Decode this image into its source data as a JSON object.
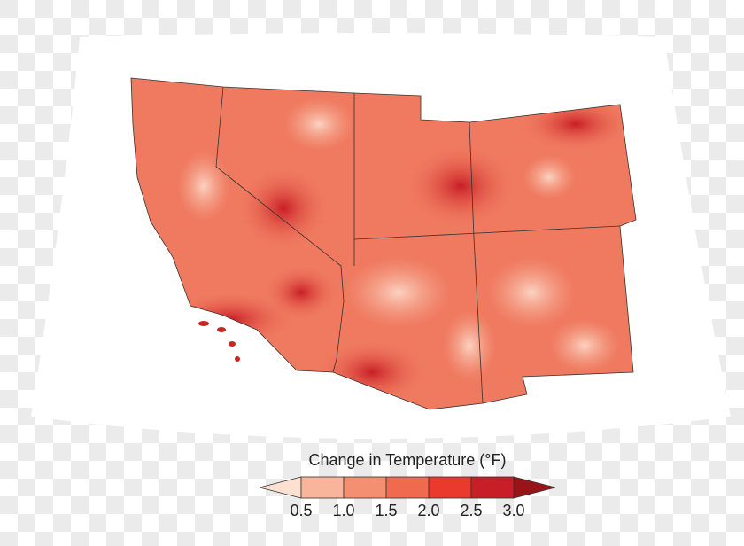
{
  "legend": {
    "title": "Change in Temperature (°F)",
    "ticks": [
      "0.5",
      "1.0",
      "1.5",
      "2.0",
      "2.5",
      "3.0"
    ],
    "colors": [
      "#fde0d2",
      "#f9b59b",
      "#f48f72",
      "#f06a4f",
      "#ea3a2d",
      "#c81e27",
      "#981419"
    ]
  },
  "map": {
    "regions": [
      "California",
      "Nevada",
      "Utah",
      "Colorado",
      "Arizona",
      "New Mexico"
    ],
    "base_color": "#ee6b52",
    "border_color": "#333333"
  }
}
